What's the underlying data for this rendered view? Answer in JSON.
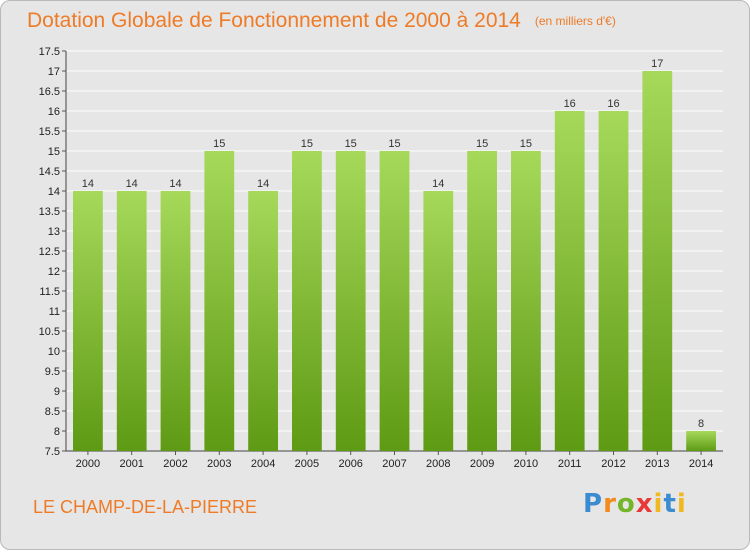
{
  "header": {
    "title": "Dotation Globale de Fonctionnement de 2000 à 2014",
    "unit": "(en milliers d'€)"
  },
  "footer": {
    "town": "LE CHAMP-DE-LA-PIERRE",
    "logo": "Proxiti"
  },
  "colors": {
    "title": "#ee7b27",
    "bar_top": "#a6d95a",
    "bar_bottom": "#5e9a14",
    "background": "#e6e6e6",
    "grid": "#ffffff"
  },
  "chart_data": {
    "type": "bar",
    "title": "Dotation Globale de Fonctionnement de 2000 à 2014",
    "xlabel": "",
    "ylabel": "",
    "ylim": [
      7.5,
      17.5
    ],
    "yticks": [
      "7.5",
      "8",
      "8.5",
      "9",
      "9.5",
      "10",
      "10.5",
      "11",
      "11.5",
      "12",
      "12.5",
      "13",
      "13.5",
      "14",
      "14.5",
      "15",
      "15.5",
      "16",
      "16.5",
      "17",
      "17.5"
    ],
    "grid": true,
    "categories": [
      "2000",
      "2001",
      "2002",
      "2003",
      "2004",
      "2005",
      "2006",
      "2007",
      "2008",
      "2009",
      "2010",
      "2011",
      "2012",
      "2013",
      "2014"
    ],
    "values": [
      14,
      14,
      14,
      15,
      14,
      15,
      15,
      15,
      14,
      15,
      15,
      16,
      16,
      17,
      8
    ]
  }
}
